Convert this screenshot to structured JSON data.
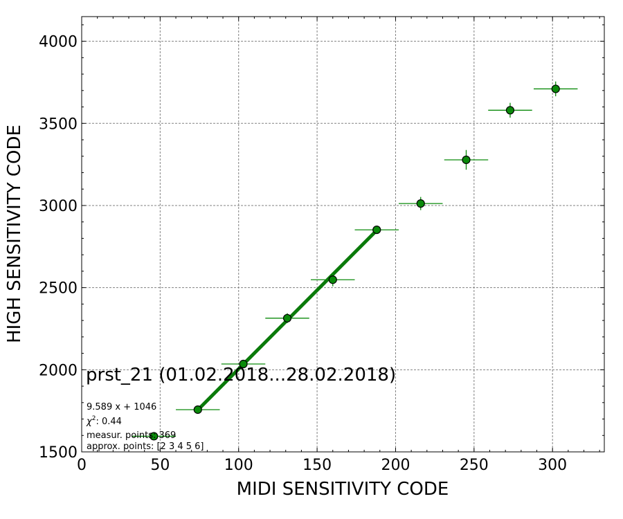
{
  "chart_data": {
    "type": "scatter",
    "title": "prst_21 (01.02.2018...28.02.2018)",
    "xlabel": "MIDI SENSITIVITY CODE",
    "ylabel": "HIGH SENSITIVITY CODE",
    "xlim": [
      0,
      333
    ],
    "ylim": [
      1500,
      4150
    ],
    "xticks": [
      0,
      50,
      100,
      150,
      200,
      250,
      300
    ],
    "yticks": [
      1500,
      2000,
      2500,
      3000,
      3500,
      4000
    ],
    "grid": true,
    "colors": {
      "marker": "#0a8a0a",
      "marker_edge": "#000000",
      "fit_line": "#0a7a0a",
      "errorbar": "#0a8a0a"
    },
    "points": [
      {
        "x": 46,
        "y": 1595,
        "xerr": 14,
        "yerr": 8
      },
      {
        "x": 74,
        "y": 1757,
        "xerr": 14,
        "yerr": 15
      },
      {
        "x": 103,
        "y": 2035,
        "xerr": 14,
        "yerr": 20
      },
      {
        "x": 131,
        "y": 2314,
        "xerr": 14,
        "yerr": 30
      },
      {
        "x": 160,
        "y": 2548,
        "xerr": 14,
        "yerr": 40
      },
      {
        "x": 188,
        "y": 2852,
        "xerr": 14,
        "yerr": 20
      },
      {
        "x": 216,
        "y": 3012,
        "xerr": 14,
        "yerr": 40
      },
      {
        "x": 245,
        "y": 3278,
        "xerr": 14,
        "yerr": 60
      },
      {
        "x": 273,
        "y": 3580,
        "xerr": 14,
        "yerr": 45
      },
      {
        "x": 302,
        "y": 3710,
        "xerr": 14,
        "yerr": 45
      }
    ],
    "fit": {
      "slope": 9.589,
      "intercept": 1046,
      "x_start": 74,
      "x_end": 188
    },
    "annotations": {
      "equation": "9.589 x + 1046",
      "chi2_label": "χ",
      "chi2_sup": "2",
      "chi2_value": ": 0.44",
      "measur_points": "measur. points: 369",
      "approx_points": "approx. points: [2 3 4 5 6]"
    }
  }
}
